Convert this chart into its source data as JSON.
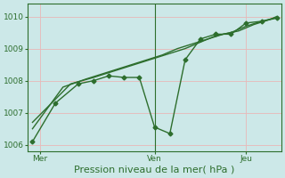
{
  "xlabel": "Pression niveau de la mer( hPa )",
  "bg_color": "#cce8e8",
  "line_color": "#2d6e2d",
  "grid_color": "#e8b8b8",
  "ylim": [
    1005.8,
    1010.4
  ],
  "yticks": [
    1006,
    1007,
    1008,
    1009,
    1010
  ],
  "xlim": [
    -0.3,
    16.3
  ],
  "xtick_positions": [
    0.5,
    8,
    14
  ],
  "xtick_labels": [
    "Mer",
    "Ven",
    "Jeu"
  ],
  "vline_x": 8,
  "series": [
    {
      "x": [
        0,
        1.5,
        3,
        4,
        5,
        6,
        7,
        8,
        9,
        10,
        11,
        12,
        13,
        14,
        15,
        16
      ],
      "y": [
        1006.1,
        1007.3,
        1007.9,
        1008.0,
        1008.15,
        1008.1,
        1008.1,
        1006.55,
        1006.35,
        1008.65,
        1009.3,
        1009.45,
        1009.45,
        1009.8,
        1009.85,
        1009.95
      ],
      "has_markers": true
    },
    {
      "x": [
        0,
        2,
        3.5,
        4.5,
        5.5,
        6.5,
        7.5,
        8.5,
        9.5,
        10.5,
        11.5,
        12.5,
        13.5,
        14.5,
        15.5,
        16
      ],
      "y": [
        1006.5,
        1007.8,
        1008.05,
        1008.2,
        1008.35,
        1008.5,
        1008.65,
        1008.8,
        1009.0,
        1009.15,
        1009.3,
        1009.45,
        1009.55,
        1009.75,
        1009.9,
        1010.0
      ],
      "has_markers": false
    },
    {
      "x": [
        0,
        2.5,
        4,
        5,
        6,
        7,
        8,
        9,
        10,
        11,
        12,
        13,
        14,
        15,
        16
      ],
      "y": [
        1006.7,
        1007.9,
        1008.1,
        1008.25,
        1008.4,
        1008.55,
        1008.7,
        1008.85,
        1009.0,
        1009.2,
        1009.4,
        1009.5,
        1009.7,
        1009.85,
        1009.97
      ],
      "has_markers": false
    }
  ],
  "marker": "D",
  "marker_size": 2.5,
  "linewidth": 1.0,
  "xlabel_fontsize": 8,
  "tick_fontsize": 6.5
}
